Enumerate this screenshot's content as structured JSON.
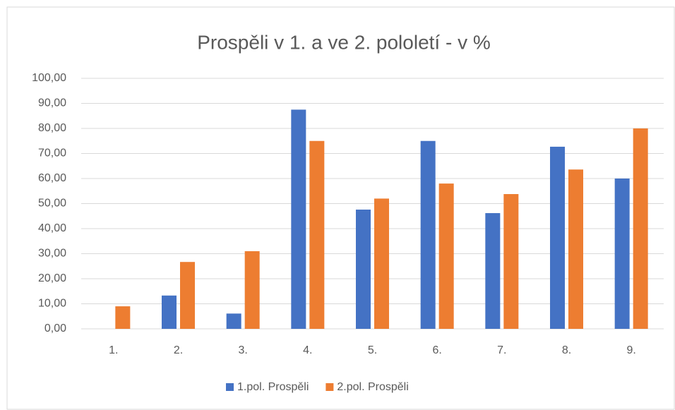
{
  "chart_data": {
    "type": "bar",
    "title": "Prospěli v 1. a ve 2. pololetí - v %",
    "categories": [
      "1.",
      "2.",
      "3.",
      "4.",
      "5.",
      "6.",
      "7.",
      "8.",
      "9."
    ],
    "series": [
      {
        "name": "1.pol. Prospěli",
        "color": "#4472c4",
        "values": [
          0,
          13.3,
          6.1,
          87.5,
          47.6,
          75,
          46.2,
          72.7,
          60
        ]
      },
      {
        "name": "2.pol. Prospěli",
        "color": "#ed7d31",
        "values": [
          9,
          26.7,
          31,
          75,
          52,
          58,
          53.8,
          63.6,
          80
        ]
      }
    ],
    "ylim": [
      0,
      100
    ],
    "yticks": [
      {
        "value": 0,
        "label": "0,00"
      },
      {
        "value": 10,
        "label": "10,00"
      },
      {
        "value": 20,
        "label": "20,00"
      },
      {
        "value": 30,
        "label": "30,00"
      },
      {
        "value": 40,
        "label": "40,00"
      },
      {
        "value": 50,
        "label": "50,00"
      },
      {
        "value": 60,
        "label": "60,00"
      },
      {
        "value": 70,
        "label": "70,00"
      },
      {
        "value": 80,
        "label": "80,00"
      },
      {
        "value": 90,
        "label": "90,00"
      },
      {
        "value": 100,
        "label": "100,00"
      }
    ],
    "grid": true,
    "legend": "bottom"
  }
}
